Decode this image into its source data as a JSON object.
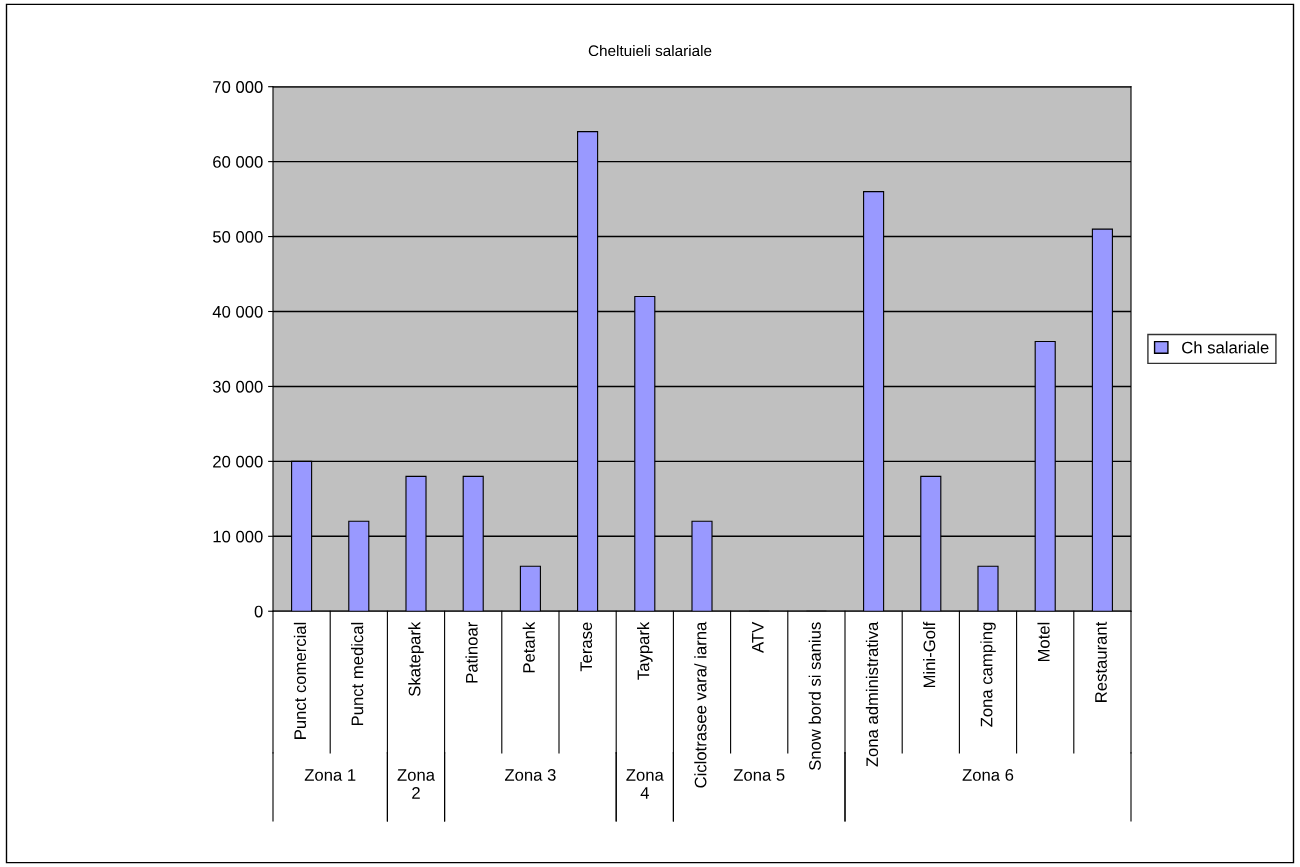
{
  "chart_data": {
    "type": "bar",
    "title": "Cheltuieli salariale",
    "categories": [
      "Punct comercial",
      "Punct medical",
      "Skatepark",
      "Patinoar",
      "Petank",
      "Terase",
      "Taypark",
      "Ciclotrasee vara/ iarna",
      "ATV",
      "Snow bord si sanius",
      "Zona administrativa",
      "Mini-Golf",
      "Zona camping",
      "Motel",
      "Restaurant"
    ],
    "series": [
      {
        "name": "Ch salariale",
        "color": "#9999ff",
        "values": [
          20000,
          12000,
          18000,
          18000,
          6000,
          64000,
          42000,
          12000,
          0,
          0,
          56000,
          18000,
          6000,
          36000,
          51000
        ]
      }
    ],
    "ylim": [
      0,
      70000
    ],
    "yticks": [
      {
        "value": 0,
        "label": "0"
      },
      {
        "value": 10000,
        "label": "10 000"
      },
      {
        "value": 20000,
        "label": "20 000"
      },
      {
        "value": 30000,
        "label": "30 000"
      },
      {
        "value": 40000,
        "label": "40 000"
      },
      {
        "value": 50000,
        "label": "50 000"
      },
      {
        "value": 60000,
        "label": "60 000"
      },
      {
        "value": 70000,
        "label": "70 000"
      }
    ],
    "grid": "y",
    "legend": "right",
    "annotations": [
      "Zona 1",
      "Zona 2",
      "Zona 3",
      "Zona 4",
      "Zona 5",
      "Zona 6"
    ]
  }
}
